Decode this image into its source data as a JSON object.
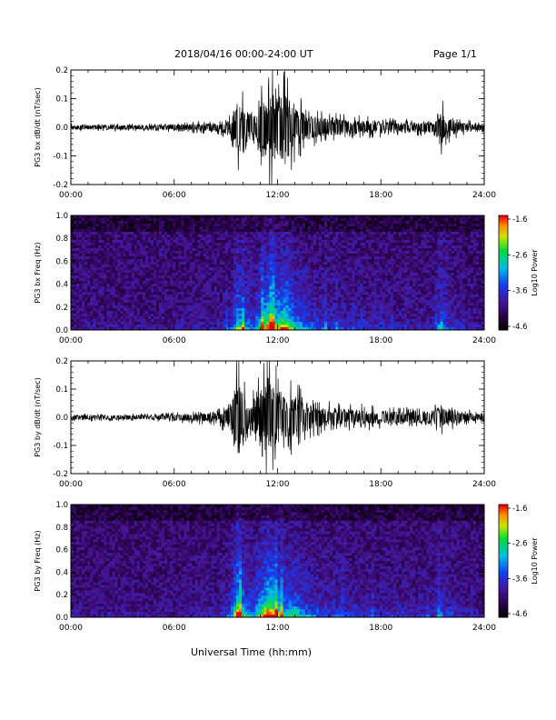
{
  "header": {
    "title": "2018/04/16  00:00-24:00 UT",
    "page": "Page 1/1"
  },
  "chart_data": [
    {
      "type": "line",
      "ylabel": "PG3 bx dB/dt (nT/sec)",
      "xlim": [
        0,
        24
      ],
      "ylim": [
        -0.2,
        0.2
      ],
      "xticks": [
        "00:00",
        "06:00",
        "12:00",
        "18:00",
        "24:00"
      ],
      "yticks": [
        "-0.2",
        "-0.1",
        "0.0",
        "0.1",
        "0.2"
      ],
      "envelope": {
        "hours": [
          0,
          5,
          7,
          8.5,
          9.3,
          9.7,
          10.1,
          10.6,
          11,
          11.5,
          12,
          12.5,
          13,
          13.5,
          14,
          15,
          16,
          17,
          18,
          19,
          20,
          21,
          21.5,
          21.8,
          22.5,
          24
        ],
        "amplitude": [
          0.012,
          0.012,
          0.018,
          0.022,
          0.04,
          0.14,
          0.09,
          0.06,
          0.12,
          0.19,
          0.16,
          0.18,
          0.1,
          0.08,
          0.06,
          0.045,
          0.04,
          0.035,
          0.03,
          0.025,
          0.025,
          0.03,
          0.1,
          0.05,
          0.03,
          0.015
        ]
      }
    },
    {
      "type": "heatmap",
      "ylabel": "PG3 bx Freq (Hz)",
      "xlim": [
        0,
        24
      ],
      "ylim": [
        0,
        1
      ],
      "xticks": [
        "00:00",
        "06:00",
        "12:00",
        "18:00",
        "24:00"
      ],
      "yticks": [
        "0.0",
        "0.2",
        "0.4",
        "0.6",
        "0.8",
        "1.0"
      ],
      "colorbar": {
        "label": "Log10 Power",
        "range": [
          -4.6,
          -1.6
        ],
        "ticks": [
          "-1.6",
          "-2.6",
          "-3.6",
          "-4.6"
        ]
      }
    },
    {
      "type": "line",
      "ylabel": "PG3 by dB/dt (nT/sec)",
      "xlim": [
        0,
        24
      ],
      "ylim": [
        -0.2,
        0.2
      ],
      "xticks": [
        "00:00",
        "06:00",
        "12:00",
        "18:00",
        "24:00"
      ],
      "yticks": [
        "-0.2",
        "-0.1",
        "0.0",
        "0.1",
        "0.2"
      ],
      "envelope": {
        "hours": [
          0,
          5,
          7,
          8.5,
          9.3,
          9.7,
          10.1,
          10.6,
          11,
          11.5,
          12,
          12.5,
          13,
          13.5,
          14,
          15,
          16,
          17,
          18,
          19,
          20,
          21,
          21.5,
          21.8,
          22.5,
          24
        ],
        "amplitude": [
          0.012,
          0.012,
          0.02,
          0.025,
          0.06,
          0.22,
          0.1,
          0.08,
          0.14,
          0.23,
          0.15,
          0.1,
          0.12,
          0.08,
          0.06,
          0.05,
          0.045,
          0.04,
          0.035,
          0.03,
          0.03,
          0.035,
          0.06,
          0.05,
          0.03,
          0.015
        ]
      }
    },
    {
      "type": "heatmap",
      "ylabel": "PG3 by Freq (Hz)",
      "xlim": [
        0,
        24
      ],
      "ylim": [
        0,
        1
      ],
      "xticks": [
        "00:00",
        "06:00",
        "12:00",
        "18:00",
        "24:00"
      ],
      "yticks": [
        "0.0",
        "0.2",
        "0.4",
        "0.6",
        "0.8",
        "1.0"
      ],
      "colorbar": {
        "label": "Log10 Power",
        "range": [
          -4.6,
          -1.6
        ],
        "ticks": [
          "-1.6",
          "-2.6",
          "-3.6",
          "-4.6"
        ]
      }
    }
  ],
  "xlabel": "Universal Time (hh:mm)"
}
